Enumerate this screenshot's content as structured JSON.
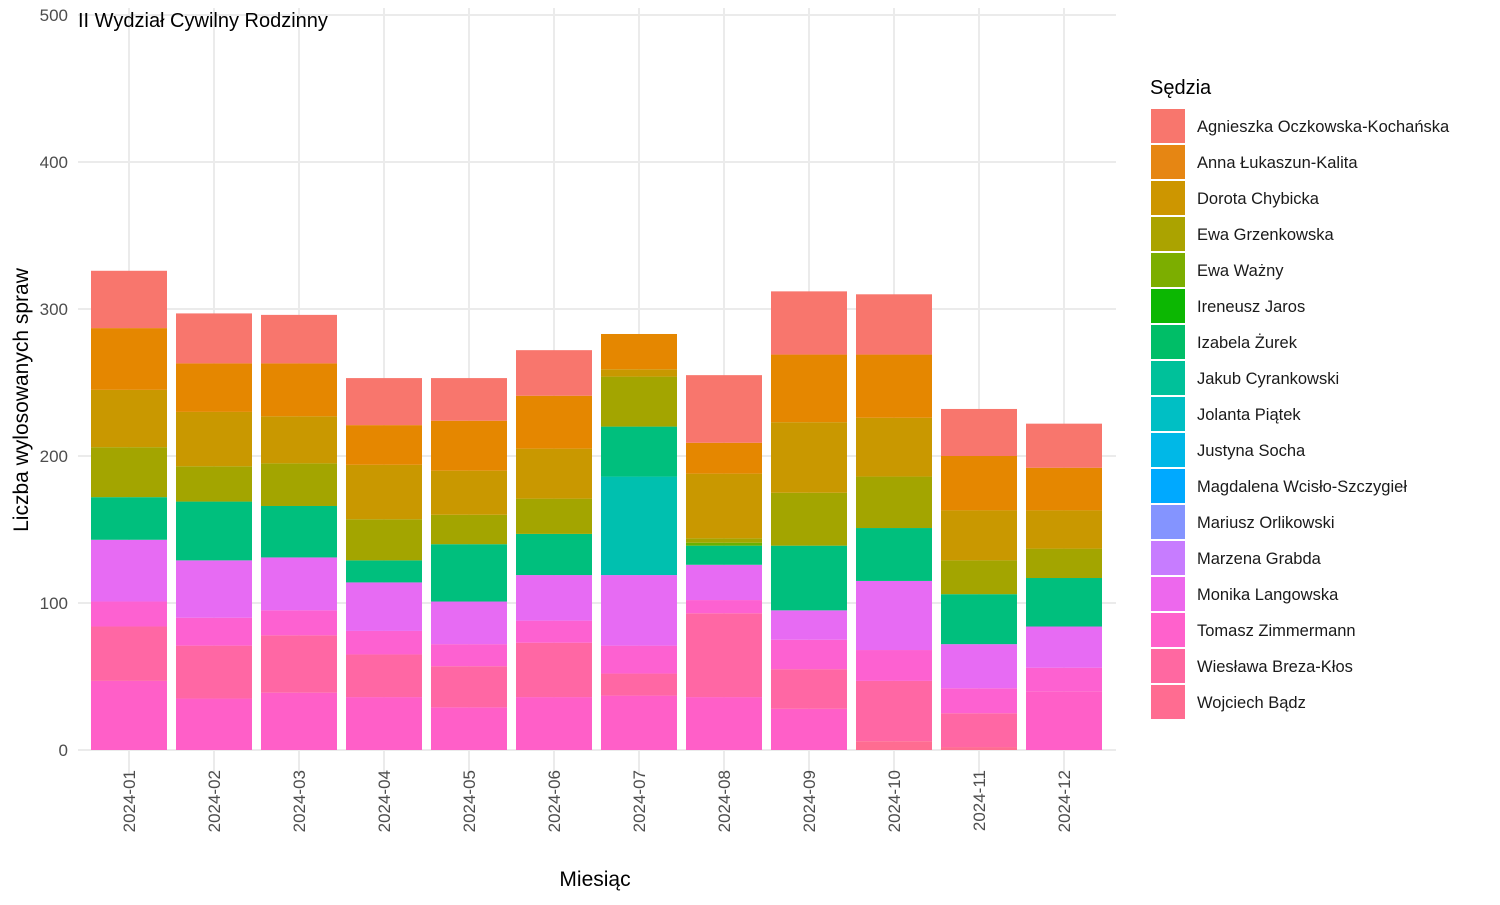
{
  "chart_data": {
    "type": "bar",
    "stacked": true,
    "title": "II Wydział Cywilny Rodzinny",
    "xlabel": "Miesiąc",
    "ylabel": "Liczba wylosowanych spraw",
    "ylim": [
      0,
      500
    ],
    "yticks": [
      0,
      100,
      200,
      300,
      400,
      500
    ],
    "grid": true,
    "legend_title": "Sędzia",
    "legend_position": "right",
    "categories": [
      "2024-01",
      "2024-02",
      "2024-03",
      "2024-04",
      "2024-05",
      "2024-06",
      "2024-07",
      "2024-08",
      "2024-09",
      "2024-10",
      "2024-11",
      "2024-12"
    ],
    "series": [
      {
        "name": "Agnieszka Oczkowska-Kochańska",
        "color": "#F8766D",
        "values": [
          39,
          34,
          33,
          32,
          29,
          31,
          0,
          46,
          43,
          41,
          32,
          30
        ]
      },
      {
        "name": "Anna Łukaszun-Kalita",
        "color": "#E58700",
        "values": [
          42,
          33,
          36,
          27,
          34,
          36,
          24,
          21,
          46,
          43,
          37,
          29
        ]
      },
      {
        "name": "Dorota Chybicka",
        "color": "#C99800",
        "values": [
          39,
          37,
          32,
          37,
          30,
          34,
          5,
          44,
          48,
          40,
          34,
          26
        ]
      },
      {
        "name": "Ewa Grzenkowska",
        "color": "#A3A500",
        "values": [
          34,
          24,
          29,
          28,
          20,
          24,
          34,
          3,
          36,
          35,
          23,
          20
        ]
      },
      {
        "name": "Ewa Ważny",
        "color": "#6BB100",
        "values": [
          0,
          0,
          0,
          0,
          0,
          0,
          0,
          2,
          0,
          0,
          0,
          0
        ]
      },
      {
        "name": "Ireneusz Jaros",
        "color": "#00BA38",
        "values": [
          0,
          0,
          0,
          0,
          0,
          0,
          0,
          0,
          0,
          0,
          0,
          0
        ]
      },
      {
        "name": "Izabela Żurek",
        "color": "#00BF7D",
        "values": [
          29,
          40,
          35,
          15,
          39,
          28,
          34,
          13,
          44,
          36,
          34,
          33
        ]
      },
      {
        "name": "Jakub Cyrankowski",
        "color": "#00C0AF",
        "values": [
          0,
          0,
          0,
          0,
          0,
          0,
          67,
          0,
          0,
          0,
          0,
          0
        ]
      },
      {
        "name": "Jolanta Piątek",
        "color": "#00BCD8",
        "values": [
          0,
          0,
          0,
          0,
          0,
          0,
          0,
          0,
          0,
          0,
          0,
          0
        ]
      },
      {
        "name": "Justyna Socha",
        "color": "#00B0F6",
        "values": [
          0,
          0,
          0,
          0,
          0,
          0,
          0,
          0,
          0,
          0,
          0,
          0
        ]
      },
      {
        "name": "Magdalena Wcisło-Szczygieł",
        "color": "#619CFF",
        "values": [
          0,
          0,
          0,
          0,
          0,
          0,
          0,
          0,
          0,
          0,
          0,
          0
        ]
      },
      {
        "name": "Mariusz Orlikowski",
        "color": "#B983FF",
        "values": [
          0,
          0,
          0,
          0,
          0,
          0,
          0,
          0,
          0,
          0,
          0,
          0
        ]
      },
      {
        "name": "Marzena Grabda",
        "color": "#E76BF3",
        "values": [
          42,
          39,
          36,
          33,
          29,
          31,
          48,
          24,
          20,
          47,
          30,
          28
        ]
      },
      {
        "name": "Monika Langowska",
        "color": "#FD61D1",
        "values": [
          17,
          19,
          17,
          16,
          15,
          15,
          19,
          9,
          20,
          21,
          17,
          16
        ]
      },
      {
        "name": "Tomasz Zimmermann",
        "color": "#FF67A4",
        "values": [
          37,
          36,
          39,
          29,
          28,
          37,
          15,
          57,
          27,
          41,
          23,
          0
        ]
      },
      {
        "name": "Wiesława Breza-Kłos",
        "color": "#FF5FC8",
        "values": [
          47,
          35,
          39,
          36,
          29,
          36,
          37,
          36,
          28,
          0,
          0,
          40
        ]
      },
      {
        "name": "Wojciech Bądz",
        "color": "#FF6C91",
        "values": [
          0,
          0,
          0,
          0,
          0,
          0,
          0,
          0,
          0,
          6,
          2,
          0
        ]
      }
    ]
  },
  "legend_colors": [
    "#F8766D",
    "#E68613",
    "#CD9600",
    "#ABA300",
    "#7CAE00",
    "#0CB702",
    "#00BE67",
    "#00C19A",
    "#00BFC4",
    "#00B8E7",
    "#00A9FF",
    "#8494FF",
    "#C77CFF",
    "#ED68ED",
    "#FF61CC",
    "#FF68A1",
    "#FF6C91"
  ],
  "segments_note": ""
}
